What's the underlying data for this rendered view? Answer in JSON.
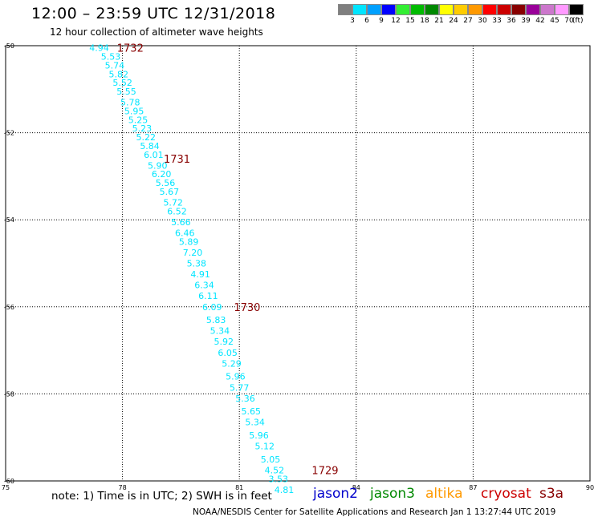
{
  "title": "12:00 – 23:59 UTC 12/31/2018",
  "subtitle": "12 hour collection of altimeter wave heights",
  "colorbar": {
    "labels": [
      "3",
      "6",
      "9",
      "12",
      "15",
      "18",
      "21",
      "24",
      "27",
      "30",
      "33",
      "36",
      "39",
      "42",
      "45",
      "70"
    ],
    "unit": "(ft)",
    "colors": [
      "#7f7f7f",
      "#00e5ff",
      "#00a0ff",
      "#0000ff",
      "#33ee33",
      "#00bb00",
      "#008800",
      "#ffff00",
      "#ffcc00",
      "#ff9900",
      "#ff0000",
      "#cc0000",
      "#880000",
      "#990099",
      "#cc77cc",
      "#ff99ff",
      "#000000"
    ]
  },
  "note": "note:  1) Time is in UTC;  2) SWH is in feet",
  "satellites": [
    {
      "name": "jason2",
      "color": "#0000cc"
    },
    {
      "name": "jason3",
      "color": "#008800"
    },
    {
      "name": "altika",
      "color": "#ff9900"
    },
    {
      "name": "cryosat",
      "color": "#cc0000"
    },
    {
      "name": "s3a",
      "color": "#880000"
    }
  ],
  "footer": "NOAA/NESDIS Center for Satellite Applications and Research    Jan  1 13:27:44 UTC 2019",
  "chart_data": {
    "type": "scatter",
    "xlim": [
      75,
      90
    ],
    "ylim": [
      -60,
      -50
    ],
    "x_ticks": [
      75,
      78,
      81,
      84,
      87,
      90
    ],
    "y_ticks": [
      -50,
      -52,
      -54,
      -56,
      -58,
      -60
    ],
    "x_tick_labels": [
      "75",
      "78",
      "81",
      "84",
      "87",
      "90"
    ],
    "y_tick_labels": [
      "-50",
      "-52",
      "-54",
      "-56",
      "-58",
      "-60"
    ],
    "grid": true,
    "series": [
      {
        "name": "s3a",
        "color": "#00e5ff",
        "points": [
          {
            "x": 77.4,
            "y": -50.05,
            "label": "4.94"
          },
          {
            "x": 77.7,
            "y": -50.25,
            "label": "5.53"
          },
          {
            "x": 77.8,
            "y": -50.45,
            "label": "5.74"
          },
          {
            "x": 77.9,
            "y": -50.65,
            "label": "5.82"
          },
          {
            "x": 78.0,
            "y": -50.85,
            "label": "5.52"
          },
          {
            "x": 78.1,
            "y": -51.05,
            "label": "5.55"
          },
          {
            "x": 78.2,
            "y": -51.3,
            "label": "5.78"
          },
          {
            "x": 78.3,
            "y": -51.5,
            "label": "5.95"
          },
          {
            "x": 78.4,
            "y": -51.7,
            "label": "5.25"
          },
          {
            "x": 78.5,
            "y": -51.9,
            "label": "5.23"
          },
          {
            "x": 78.6,
            "y": -52.1,
            "label": "5.22"
          },
          {
            "x": 78.7,
            "y": -52.3,
            "label": "5.84"
          },
          {
            "x": 78.8,
            "y": -52.5,
            "label": "6.01"
          },
          {
            "x": 78.9,
            "y": -52.75,
            "label": "5.90"
          },
          {
            "x": 79.0,
            "y": -52.95,
            "label": "6.20"
          },
          {
            "x": 79.1,
            "y": -53.15,
            "label": "5.56"
          },
          {
            "x": 79.2,
            "y": -53.35,
            "label": "5.67"
          },
          {
            "x": 79.3,
            "y": -53.6,
            "label": "5.72"
          },
          {
            "x": 79.4,
            "y": -53.8,
            "label": "6.52"
          },
          {
            "x": 79.5,
            "y": -54.05,
            "label": "5.66"
          },
          {
            "x": 79.6,
            "y": -54.3,
            "label": "6.46"
          },
          {
            "x": 79.7,
            "y": -54.5,
            "label": "5.89"
          },
          {
            "x": 79.8,
            "y": -54.75,
            "label": "7.20"
          },
          {
            "x": 79.9,
            "y": -55.0,
            "label": "5.38"
          },
          {
            "x": 80.0,
            "y": -55.25,
            "label": "4.91"
          },
          {
            "x": 80.1,
            "y": -55.5,
            "label": "6.34"
          },
          {
            "x": 80.2,
            "y": -55.75,
            "label": "6.11"
          },
          {
            "x": 80.3,
            "y": -56.0,
            "label": "6.09"
          },
          {
            "x": 80.4,
            "y": -56.3,
            "label": "5.83"
          },
          {
            "x": 80.5,
            "y": -56.55,
            "label": "5.34"
          },
          {
            "x": 80.6,
            "y": -56.8,
            "label": "5.92"
          },
          {
            "x": 80.7,
            "y": -57.05,
            "label": "6.05"
          },
          {
            "x": 80.8,
            "y": -57.3,
            "label": "5.29"
          },
          {
            "x": 80.9,
            "y": -57.6,
            "label": "5.96"
          },
          {
            "x": 81.0,
            "y": -57.85,
            "label": "5.77"
          },
          {
            "x": 81.15,
            "y": -58.1,
            "label": "5.36"
          },
          {
            "x": 81.3,
            "y": -58.4,
            "label": "5.65"
          },
          {
            "x": 81.4,
            "y": -58.65,
            "label": "5.34"
          },
          {
            "x": 81.5,
            "y": -58.95,
            "label": "5.96"
          },
          {
            "x": 81.65,
            "y": -59.2,
            "label": "5.12"
          },
          {
            "x": 81.8,
            "y": -59.5,
            "label": "5.05"
          },
          {
            "x": 81.9,
            "y": -59.75,
            "label": "4.52"
          },
          {
            "x": 82.0,
            "y": -59.95,
            "label": "3.53"
          },
          {
            "x": 82.15,
            "y": -60.2,
            "label": "4.81"
          }
        ]
      }
    ],
    "annotations": [
      {
        "text": "1732",
        "x": 78.2,
        "y": -50.05,
        "color": "#880000"
      },
      {
        "text": "1731",
        "x": 79.4,
        "y": -52.6,
        "color": "#880000"
      },
      {
        "text": "1730",
        "x": 81.2,
        "y": -56.0,
        "color": "#880000"
      },
      {
        "text": "1729",
        "x": 83.2,
        "y": -59.75,
        "color": "#880000"
      }
    ]
  }
}
